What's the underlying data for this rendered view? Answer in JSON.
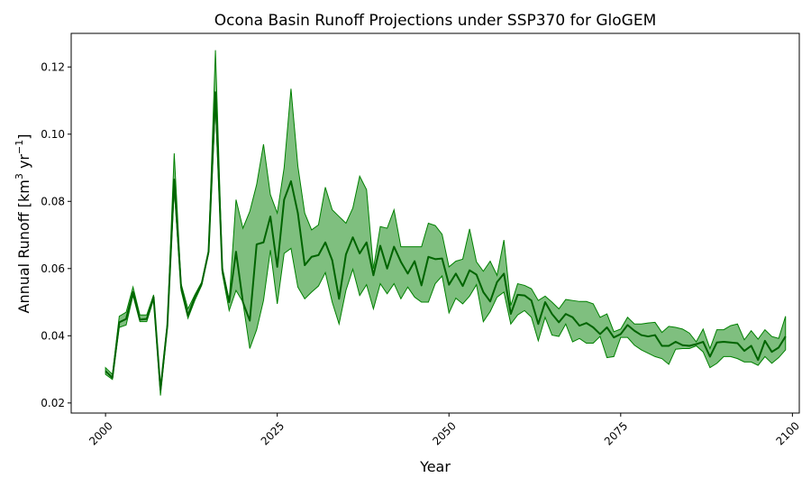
{
  "chart_data": {
    "type": "area",
    "title": "Ocona Basin Runoff Projections under SSP370 for GloGEM",
    "xlabel": "Year",
    "ylabel": {
      "base": "Annual Runoff [km",
      "sup1": "3",
      "mid": " yr",
      "sup2": "−1",
      "end": "]"
    },
    "xlim": [
      1995,
      2101
    ],
    "ylim": [
      0.017,
      0.13
    ],
    "xticks": [
      2000,
      2025,
      2050,
      2075,
      2100
    ],
    "yticks": [
      0.02,
      0.04,
      0.06,
      0.08,
      0.1,
      0.12
    ],
    "ytick_labels": [
      "0.02",
      "0.04",
      "0.06",
      "0.08",
      "0.10",
      "0.12"
    ],
    "xtick_labels": [
      "2000",
      "2025",
      "2050",
      "2075",
      "2100"
    ],
    "grid": false,
    "colors": {
      "line": "#006400",
      "band": "#008000"
    },
    "x": [
      2000,
      2001,
      2002,
      2003,
      2004,
      2005,
      2006,
      2007,
      2008,
      2009,
      2010,
      2011,
      2012,
      2013,
      2014,
      2015,
      2016,
      2017,
      2018,
      2019,
      2020,
      2021,
      2022,
      2023,
      2024,
      2025,
      2026,
      2027,
      2028,
      2029,
      2030,
      2031,
      2032,
      2033,
      2034,
      2035,
      2036,
      2037,
      2038,
      2039,
      2040,
      2041,
      2042,
      2043,
      2044,
      2045,
      2046,
      2047,
      2048,
      2049,
      2050,
      2051,
      2052,
      2053,
      2054,
      2055,
      2056,
      2057,
      2058,
      2059,
      2060,
      2061,
      2062,
      2063,
      2064,
      2065,
      2066,
      2067,
      2068,
      2069,
      2070,
      2071,
      2072,
      2073,
      2074,
      2075,
      2076,
      2077,
      2078,
      2079,
      2080,
      2081,
      2082,
      2083,
      2084,
      2085,
      2086,
      2087,
      2088,
      2089,
      2090,
      2091,
      2092,
      2093,
      2094,
      2095,
      2096,
      2097,
      2098,
      2099
    ],
    "series": [
      {
        "values": [
          0.0295,
          0.0275,
          0.044,
          0.045,
          0.053,
          0.0448,
          0.045,
          0.0515,
          0.024,
          0.043,
          0.0865,
          0.0545,
          0.046,
          0.0515,
          0.0555,
          0.065,
          0.1125,
          0.0595,
          0.05,
          0.065,
          0.05,
          0.0445,
          0.0672,
          0.0678,
          0.0755,
          0.0605,
          0.0805,
          0.086,
          0.0765,
          0.061,
          0.0635,
          0.064,
          0.0678,
          0.0625,
          0.051,
          0.0642,
          0.0693,
          0.0645,
          0.0678,
          0.058,
          0.0668,
          0.06,
          0.0665,
          0.062,
          0.0585,
          0.0622,
          0.055,
          0.0635,
          0.0628,
          0.063,
          0.0552,
          0.0585,
          0.0548,
          0.0595,
          0.0582,
          0.053,
          0.0502,
          0.056,
          0.0585,
          0.0465,
          0.0522,
          0.052,
          0.0505,
          0.0435,
          0.05,
          0.0465,
          0.044,
          0.0465,
          0.0455,
          0.043,
          0.0438,
          0.0425,
          0.0405,
          0.0425,
          0.0395,
          0.0405,
          0.0432,
          0.0415,
          0.0402,
          0.0398,
          0.0402,
          0.037,
          0.037,
          0.0382,
          0.0372,
          0.037,
          0.0375,
          0.0382,
          0.0338,
          0.038,
          0.0382,
          0.038,
          0.0378,
          0.0355,
          0.037,
          0.0328,
          0.0385,
          0.0352,
          0.0365,
          0.0398
        ]
      }
    ],
    "band_upper": [
      0.0305,
      0.0285,
      0.0458,
      0.047,
      0.0545,
      0.0462,
      0.0462,
      0.0522,
      0.0245,
      0.044,
      0.0943,
      0.0555,
      0.048,
      0.0522,
      0.056,
      0.0655,
      0.125,
      0.0605,
      0.0505,
      0.0805,
      0.072,
      0.077,
      0.085,
      0.097,
      0.082,
      0.0765,
      0.09,
      0.1135,
      0.0905,
      0.0765,
      0.0715,
      0.073,
      0.0842,
      0.0775,
      0.0755,
      0.0735,
      0.078,
      0.0875,
      0.0835,
      0.06,
      0.0725,
      0.072,
      0.0775,
      0.0665,
      0.0665,
      0.0665,
      0.0665,
      0.0735,
      0.0728,
      0.0702,
      0.0605,
      0.0622,
      0.0628,
      0.0718,
      0.062,
      0.0592,
      0.0622,
      0.058,
      0.0685,
      0.049,
      0.0555,
      0.055,
      0.054,
      0.0505,
      0.0518,
      0.05,
      0.048,
      0.0508,
      0.0505,
      0.0502,
      0.0502,
      0.0495,
      0.0455,
      0.0465,
      0.0412,
      0.042,
      0.0455,
      0.0435,
      0.0435,
      0.0438,
      0.044,
      0.041,
      0.0428,
      0.0425,
      0.042,
      0.0408,
      0.0382,
      0.042,
      0.0362,
      0.0418,
      0.0418,
      0.043,
      0.0435,
      0.0388,
      0.0415,
      0.039,
      0.0418,
      0.0398,
      0.0392,
      0.0458
    ],
    "band_lower": [
      0.0285,
      0.027,
      0.0425,
      0.0432,
      0.052,
      0.0442,
      0.0442,
      0.0508,
      0.0222,
      0.0425,
      0.0835,
      0.0535,
      0.0452,
      0.0505,
      0.055,
      0.0645,
      0.1085,
      0.0585,
      0.0475,
      0.0535,
      0.05,
      0.0362,
      0.0418,
      0.0505,
      0.0655,
      0.0495,
      0.0645,
      0.066,
      0.0545,
      0.051,
      0.053,
      0.0548,
      0.0588,
      0.05,
      0.0435,
      0.0535,
      0.0598,
      0.052,
      0.0552,
      0.048,
      0.0555,
      0.0525,
      0.0555,
      0.051,
      0.0545,
      0.0515,
      0.05,
      0.05,
      0.0555,
      0.0578,
      0.0468,
      0.0512,
      0.0495,
      0.0518,
      0.0552,
      0.0442,
      0.0472,
      0.0515,
      0.053,
      0.0435,
      0.0462,
      0.0475,
      0.0455,
      0.0385,
      0.0455,
      0.0402,
      0.0398,
      0.0435,
      0.0382,
      0.0392,
      0.0378,
      0.0378,
      0.0398,
      0.0335,
      0.0338,
      0.0395,
      0.0395,
      0.0372,
      0.0358,
      0.0348,
      0.0338,
      0.0332,
      0.0315,
      0.036,
      0.0362,
      0.0362,
      0.037,
      0.0352,
      0.0305,
      0.0318,
      0.0338,
      0.0338,
      0.0332,
      0.0322,
      0.0322,
      0.0312,
      0.0338,
      0.0318,
      0.0335,
      0.0358
    ]
  }
}
